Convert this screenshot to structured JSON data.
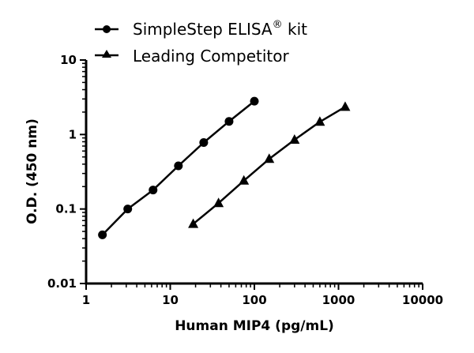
{
  "chart_data": {
    "type": "line",
    "title": "",
    "xlabel": "Human MIP4 (pg/mL)",
    "ylabel": "O.D. (450 nm)",
    "xscale": "log",
    "yscale": "log",
    "xlim": [
      1,
      10000
    ],
    "ylim": [
      0.01,
      10
    ],
    "xticks": [
      "1",
      "10",
      "100",
      "1000",
      "10000"
    ],
    "yticks": [
      "0.01",
      "0.1",
      "1",
      "10"
    ],
    "grid": false,
    "legend_position": "top",
    "series": [
      {
        "name": "SimpleStep ELISA® kit",
        "legend_main": "SimpleStep ELISA",
        "legend_sup": "®",
        "legend_tail": " kit",
        "marker": "circle",
        "color": "#000000",
        "x": [
          1.5625,
          3.125,
          6.25,
          12.5,
          25,
          50,
          100
        ],
        "y": [
          0.045,
          0.1,
          0.18,
          0.38,
          0.78,
          1.5,
          2.8
        ]
      },
      {
        "name": "Leading Competitor",
        "marker": "triangle",
        "color": "#000000",
        "x": [
          18.75,
          37.5,
          75,
          150,
          300,
          600,
          1200
        ],
        "y": [
          0.063,
          0.12,
          0.24,
          0.47,
          0.85,
          1.48,
          2.35
        ]
      }
    ]
  }
}
